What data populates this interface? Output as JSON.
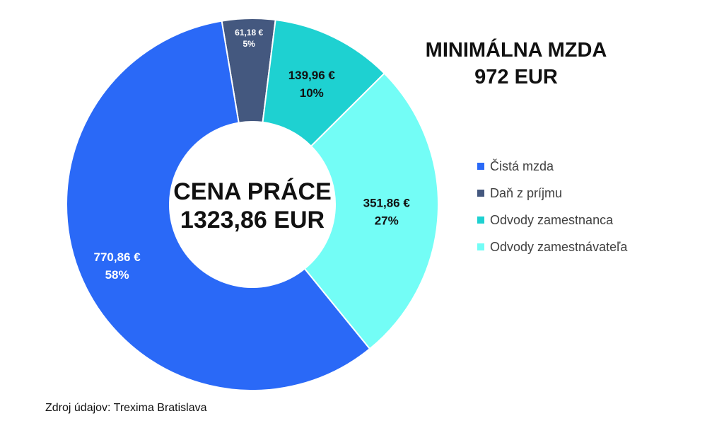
{
  "title": {
    "line1": "MINIMÁLNA MZDA",
    "line2": "972 EUR"
  },
  "center": {
    "line1": "CENA PRÁCE",
    "line2": "1323,86 EUR"
  },
  "source": "Zdroj údajov: Trexima Bratislava",
  "chart_data": {
    "type": "pie",
    "style": "donut",
    "total": 1323.86,
    "slices": [
      {
        "name": "Daň z príjmu",
        "value": 61.18,
        "value_label": "61,18 €",
        "percent_label": "5%",
        "color": "#44587f",
        "label_color": "#ffffff"
      },
      {
        "name": "Odvody zamestnanca",
        "value": 139.96,
        "value_label": "139,96 €",
        "percent_label": "10%",
        "color": "#1ed1d1",
        "label_color": "#111111"
      },
      {
        "name": "Odvody zamestnávateľa",
        "value": 351.86,
        "value_label": "351,86 €",
        "percent_label": "27%",
        "color": "#73fdf6",
        "label_color": "#111111"
      },
      {
        "name": "Čistá mzda",
        "value": 770.86,
        "value_label": "770,86 €",
        "percent_label": "58%",
        "color": "#2a69f7",
        "label_color": "#ffffff"
      }
    ],
    "legend": [
      {
        "name": "Čistá mzda",
        "color": "#2a69f7"
      },
      {
        "name": "Daň z príjmu",
        "color": "#44587f"
      },
      {
        "name": "Odvody zamestnanca",
        "color": "#1ed1d1"
      },
      {
        "name": "Odvody zamestnávateľa",
        "color": "#73fdf6"
      }
    ],
    "legend_position": "right"
  }
}
